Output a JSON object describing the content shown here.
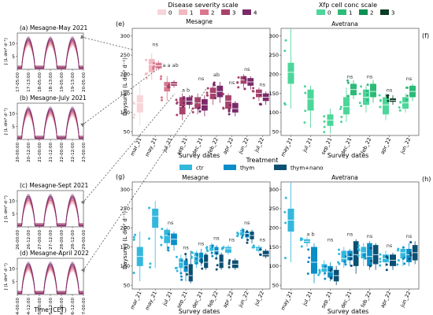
{
  "colors": {
    "severity": [
      "#f7d5d8",
      "#f2b8c0",
      "#d9788e",
      "#a8426c",
      "#7a2a6a"
    ],
    "xf": [
      "#4dd69a",
      "#2dba78",
      "#0f8f52",
      "#0b3d25"
    ],
    "treat": [
      "#33b8dd",
      "#0b8ec8",
      "#0b4f73"
    ]
  },
  "legends": {
    "severity": {
      "title": "Disease severity scale",
      "labels": [
        "0",
        "1",
        "2",
        "3",
        "4"
      ]
    },
    "xf": {
      "title": "Xfp cell conc scale",
      "labels": [
        "0",
        "1",
        "2",
        "3"
      ]
    },
    "treatment": {
      "title": "Treatment",
      "labels": [
        "ctr",
        "thym",
        "thym+nano"
      ]
    }
  },
  "chart_data": [
    {
      "panel": "a",
      "type": "line",
      "title": "(a) Mesagne-May 2021",
      "ylabel": "J (L dm² d⁻¹)",
      "yticks": [
        "5",
        "10"
      ],
      "ticks": [
        "17-05:00",
        "17-13:00",
        "18-05:00",
        "18-13:00",
        "19-05:00",
        "19-13:00",
        "20-05:00"
      ],
      "peak_days": 3
    },
    {
      "panel": "b",
      "type": "line",
      "title": "(b) Mesagne-July 2021",
      "ylabel": "J (L dm² d⁻¹)",
      "yticks": [
        "5",
        "10"
      ],
      "ticks": [
        "20-00:00",
        "20-12:00",
        "21-00:00",
        "21-12:00",
        "22-00:00",
        "22-12:00",
        "23-00:00"
      ],
      "peak_days": 3
    },
    {
      "panel": "c",
      "type": "line",
      "title": "(c) Mesagne-Sept 2021",
      "ylabel": "J (L dm² d⁻¹)",
      "yticks": [
        "5",
        "10"
      ],
      "ticks": [
        "26-00:00",
        "26-12:00",
        "27-00:00",
        "27-12:00",
        "28-00:00",
        "28-12:00",
        "29-00:00"
      ],
      "peak_days": 3
    },
    {
      "panel": "d",
      "type": "line",
      "title": "(d) Mesagne-April 2022",
      "ylabel": "J (L dm² d⁻¹)",
      "yticks": [
        "5",
        "10"
      ],
      "ticks": [
        "04-00:00",
        "04-12:00",
        "05-00:00",
        "05-12:00",
        "06-00:00",
        "06-12:00",
        "07-00:00"
      ],
      "xlabel": "Time (CET)",
      "peak_days": 3
    },
    {
      "panel": "e",
      "type": "box",
      "title": "Mesagne",
      "xlabel": "Survey dates",
      "ylabel": "Daysum J (L dm² d⁻¹)",
      "ylim": [
        40,
        320
      ],
      "yticks": [
        50,
        100,
        150,
        200,
        250,
        300
      ],
      "categories": [
        "mar_21",
        "may_21",
        "jul_21",
        "sep_21",
        "dec_21",
        "feb_22",
        "apr_22",
        "jun_22",
        "jul_22"
      ],
      "boxes": [
        {
          "cat": 0,
          "scale": 0,
          "q1": 100,
          "med": 125,
          "q3": 145,
          "min": 65,
          "max": 175
        },
        {
          "cat": 1,
          "scale": 1,
          "q1": 205,
          "med": 225,
          "q3": 240,
          "min": 185,
          "max": 255
        },
        {
          "cat": 1,
          "scale": 2,
          "q1": 215,
          "med": 222,
          "q3": 230,
          "min": 210,
          "max": 235
        },
        {
          "cat": 2,
          "scale": 2,
          "q1": 155,
          "med": 168,
          "q3": 180,
          "min": 130,
          "max": 195
        },
        {
          "cat": 2,
          "scale": 3,
          "q1": 170,
          "med": 175,
          "q3": 180,
          "min": 165,
          "max": 185
        },
        {
          "cat": 3,
          "scale": 3,
          "q1": 95,
          "med": 115,
          "q3": 140,
          "min": 80,
          "max": 150
        },
        {
          "cat": 3,
          "scale": 4,
          "q1": 120,
          "med": 130,
          "q3": 140,
          "min": 110,
          "max": 145
        },
        {
          "cat": 4,
          "scale": 3,
          "q1": 110,
          "med": 125,
          "q3": 140,
          "min": 95,
          "max": 150
        },
        {
          "cat": 4,
          "scale": 4,
          "q1": 105,
          "med": 120,
          "q3": 135,
          "min": 90,
          "max": 145
        },
        {
          "cat": 5,
          "scale": 3,
          "q1": 135,
          "med": 150,
          "q3": 165,
          "min": 120,
          "max": 175
        },
        {
          "cat": 5,
          "scale": 4,
          "q1": 140,
          "med": 155,
          "q3": 170,
          "min": 125,
          "max": 180
        },
        {
          "cat": 6,
          "scale": 3,
          "q1": 110,
          "med": 130,
          "q3": 145,
          "min": 100,
          "max": 150
        },
        {
          "cat": 6,
          "scale": 4,
          "q1": 100,
          "med": 110,
          "q3": 125,
          "min": 90,
          "max": 130
        },
        {
          "cat": 7,
          "scale": 3,
          "q1": 175,
          "med": 185,
          "q3": 195,
          "min": 165,
          "max": 200
        },
        {
          "cat": 7,
          "scale": 4,
          "q1": 170,
          "med": 180,
          "q3": 190,
          "min": 160,
          "max": 195
        },
        {
          "cat": 8,
          "scale": 3,
          "q1": 140,
          "med": 150,
          "q3": 160,
          "min": 130,
          "max": 165
        },
        {
          "cat": 8,
          "scale": 4,
          "q1": 130,
          "med": 140,
          "q3": 150,
          "min": 120,
          "max": 155
        }
      ],
      "annotations": [
        {
          "cat": 1,
          "y": 270,
          "text": "ns"
        },
        {
          "cat": 2,
          "y": 215,
          "text": "a a ab"
        },
        {
          "cat": 3,
          "y": 150,
          "text": "a b"
        },
        {
          "cat": 4,
          "y": 180,
          "text": "ns"
        },
        {
          "cat": 5,
          "y": 190,
          "text": "ab"
        },
        {
          "cat": 6,
          "y": 170,
          "text": "ns"
        },
        {
          "cat": 7,
          "y": 205,
          "text": "ns"
        },
        {
          "cat": 8,
          "y": 165,
          "text": "ns"
        }
      ]
    },
    {
      "panel": "f",
      "type": "box",
      "title": "Avetrana",
      "xlabel": "Survey dates",
      "ylim": [
        40,
        320
      ],
      "yticks": [
        50,
        100,
        150,
        200,
        250,
        300
      ],
      "categories": [
        "may_21",
        "jul_21",
        "sep_21",
        "dec_21",
        "feb_22",
        "apr_22",
        "jun_22"
      ],
      "boxes": [
        {
          "cat": 0,
          "scale": 0,
          "q1": 175,
          "med": 205,
          "q3": 230,
          "min": 110,
          "max": 320
        },
        {
          "cat": 1,
          "scale": 0,
          "q1": 105,
          "med": 135,
          "q3": 160,
          "min": 60,
          "max": 170
        },
        {
          "cat": 2,
          "scale": 0,
          "q1": 65,
          "med": 80,
          "q3": 95,
          "min": 45,
          "max": 110
        },
        {
          "cat": 3,
          "scale": 0,
          "q1": 95,
          "med": 115,
          "q3": 140,
          "min": 75,
          "max": 165
        },
        {
          "cat": 3,
          "scale": 1,
          "q1": 145,
          "med": 160,
          "q3": 175,
          "min": 135,
          "max": 185
        },
        {
          "cat": 4,
          "scale": 0,
          "q1": 120,
          "med": 140,
          "q3": 160,
          "min": 100,
          "max": 170
        },
        {
          "cat": 4,
          "scale": 1,
          "q1": 140,
          "med": 155,
          "q3": 175,
          "min": 125,
          "max": 185
        },
        {
          "cat": 5,
          "scale": 0,
          "q1": 95,
          "med": 120,
          "q3": 140,
          "min": 80,
          "max": 150
        },
        {
          "cat": 5,
          "scale": 3,
          "q1": 128,
          "med": 132,
          "q3": 137,
          "min": 120,
          "max": 145
        },
        {
          "cat": 6,
          "scale": 0,
          "q1": 110,
          "med": 125,
          "q3": 140,
          "min": 100,
          "max": 150
        },
        {
          "cat": 6,
          "scale": 1,
          "q1": 140,
          "med": 155,
          "q3": 170,
          "min": 130,
          "max": 175
        }
      ],
      "annotations": [
        {
          "cat": 3,
          "y": 185,
          "text": "ns"
        },
        {
          "cat": 4,
          "y": 185,
          "text": "ns"
        },
        {
          "cat": 5,
          "y": 150,
          "text": "ns"
        },
        {
          "cat": 6,
          "y": 180,
          "text": "ns"
        }
      ]
    },
    {
      "panel": "g",
      "type": "box",
      "title": "Mesagne",
      "xlabel": "Survey dates",
      "ylabel": "Daysum J (L dm² d⁻¹)",
      "ylim": [
        40,
        320
      ],
      "yticks": [
        50,
        100,
        150,
        200,
        250,
        300
      ],
      "categories": [
        "mar_21",
        "may_21",
        "jul_21",
        "sep_21",
        "dec_21",
        "feb_22",
        "apr_22",
        "jun_22",
        "jul_22"
      ],
      "boxes": [
        {
          "cat": 0,
          "trt": 0,
          "q1": 100,
          "med": 125,
          "q3": 150,
          "min": 60,
          "max": 190
        },
        {
          "cat": 1,
          "trt": 0,
          "q1": 200,
          "med": 230,
          "q3": 250,
          "min": 95,
          "max": 270
        },
        {
          "cat": 2,
          "trt": 0,
          "q1": 160,
          "med": 180,
          "q3": 195,
          "min": 140,
          "max": 200
        },
        {
          "cat": 2,
          "trt": 1,
          "q1": 155,
          "med": 170,
          "q3": 185,
          "min": 140,
          "max": 190
        },
        {
          "cat": 3,
          "trt": 0,
          "q1": 95,
          "med": 110,
          "q3": 120,
          "min": 80,
          "max": 130
        },
        {
          "cat": 3,
          "trt": 1,
          "q1": 85,
          "med": 100,
          "q3": 115,
          "min": 60,
          "max": 130
        },
        {
          "cat": 3,
          "trt": 2,
          "q1": 60,
          "med": 75,
          "q3": 105,
          "min": 55,
          "max": 140
        },
        {
          "cat": 4,
          "trt": 0,
          "q1": 105,
          "med": 125,
          "q3": 135,
          "min": 95,
          "max": 140
        },
        {
          "cat": 4,
          "trt": 1,
          "q1": 110,
          "med": 120,
          "q3": 135,
          "min": 100,
          "max": 145
        },
        {
          "cat": 4,
          "trt": 2,
          "q1": 95,
          "med": 110,
          "q3": 130,
          "min": 90,
          "max": 135
        },
        {
          "cat": 5,
          "trt": 0,
          "q1": 140,
          "med": 150,
          "q3": 155,
          "min": 130,
          "max": 160
        },
        {
          "cat": 5,
          "trt": 1,
          "q1": 130,
          "med": 140,
          "q3": 150,
          "min": 120,
          "max": 155
        },
        {
          "cat": 5,
          "trt": 2,
          "q1": 95,
          "med": 110,
          "q3": 130,
          "min": 90,
          "max": 135
        },
        {
          "cat": 6,
          "trt": 0,
          "q1": 135,
          "med": 145,
          "q3": 150,
          "min": 130,
          "max": 155
        },
        {
          "cat": 6,
          "trt": 2,
          "q1": 95,
          "med": 105,
          "q3": 115,
          "min": 90,
          "max": 120
        },
        {
          "cat": 7,
          "trt": 0,
          "q1": 180,
          "med": 190,
          "q3": 195,
          "min": 170,
          "max": 200
        },
        {
          "cat": 7,
          "trt": 1,
          "q1": 175,
          "med": 185,
          "q3": 190,
          "min": 165,
          "max": 195
        },
        {
          "cat": 7,
          "trt": 2,
          "q1": 170,
          "med": 180,
          "q3": 190,
          "min": 160,
          "max": 195
        },
        {
          "cat": 8,
          "trt": 0,
          "q1": 140,
          "med": 145,
          "q3": 150,
          "min": 135,
          "max": 155
        },
        {
          "cat": 8,
          "trt": 2,
          "q1": 125,
          "med": 130,
          "q3": 140,
          "min": 120,
          "max": 145
        }
      ],
      "annotations": [
        {
          "cat": 2,
          "y": 205,
          "text": "ns"
        },
        {
          "cat": 3,
          "y": 140,
          "text": "ns"
        },
        {
          "cat": 4,
          "y": 150,
          "text": "ns"
        },
        {
          "cat": 5,
          "y": 165,
          "text": "ns"
        },
        {
          "cat": 6,
          "y": 160,
          "text": "ns"
        },
        {
          "cat": 7,
          "y": 205,
          "text": "ns"
        },
        {
          "cat": 8,
          "y": 160,
          "text": "ns"
        }
      ]
    },
    {
      "panel": "h",
      "type": "box",
      "title": "Avetrana",
      "xlabel": "Survey dates",
      "ylim": [
        40,
        320
      ],
      "yticks": [
        50,
        100,
        150,
        200,
        250,
        300
      ],
      "categories": [
        "may_21",
        "jul_21",
        "sep_21",
        "dec_21",
        "feb_22",
        "apr_22",
        "jun_22"
      ],
      "boxes": [
        {
          "cat": 0,
          "trt": 0,
          "q1": 190,
          "med": 220,
          "q3": 250,
          "min": 110,
          "max": 320
        },
        {
          "cat": 1,
          "trt": 0,
          "q1": 160,
          "med": 165,
          "q3": 170,
          "min": 150,
          "max": 175
        },
        {
          "cat": 1,
          "trt": 1,
          "q1": 80,
          "med": 110,
          "q3": 150,
          "min": 55,
          "max": 160
        },
        {
          "cat": 2,
          "trt": 0,
          "q1": 85,
          "med": 95,
          "q3": 105,
          "min": 75,
          "max": 115
        },
        {
          "cat": 2,
          "trt": 1,
          "q1": 70,
          "med": 85,
          "q3": 100,
          "min": 60,
          "max": 110
        },
        {
          "cat": 2,
          "trt": 2,
          "q1": 60,
          "med": 75,
          "q3": 90,
          "min": 50,
          "max": 100
        },
        {
          "cat": 3,
          "trt": 0,
          "q1": 110,
          "med": 120,
          "q3": 140,
          "min": 95,
          "max": 150
        },
        {
          "cat": 3,
          "trt": 1,
          "q1": 115,
          "med": 125,
          "q3": 140,
          "min": 100,
          "max": 145
        },
        {
          "cat": 3,
          "trt": 2,
          "q1": 100,
          "med": 130,
          "q3": 165,
          "min": 80,
          "max": 170
        },
        {
          "cat": 4,
          "trt": 0,
          "q1": 120,
          "med": 135,
          "q3": 150,
          "min": 100,
          "max": 160
        },
        {
          "cat": 4,
          "trt": 1,
          "q1": 100,
          "med": 125,
          "q3": 160,
          "min": 90,
          "max": 165
        },
        {
          "cat": 4,
          "trt": 2,
          "q1": 105,
          "med": 130,
          "q3": 155,
          "min": 90,
          "max": 160
        },
        {
          "cat": 5,
          "trt": 0,
          "q1": 110,
          "med": 120,
          "q3": 130,
          "min": 100,
          "max": 140
        },
        {
          "cat": 5,
          "trt": 2,
          "q1": 100,
          "med": 115,
          "q3": 130,
          "min": 90,
          "max": 135
        },
        {
          "cat": 6,
          "trt": 0,
          "q1": 120,
          "med": 135,
          "q3": 145,
          "min": 100,
          "max": 150
        },
        {
          "cat": 6,
          "trt": 1,
          "q1": 110,
          "med": 130,
          "q3": 145,
          "min": 100,
          "max": 160
        },
        {
          "cat": 6,
          "trt": 2,
          "q1": 115,
          "med": 135,
          "q3": 155,
          "min": 105,
          "max": 165
        }
      ],
      "annotations": [
        {
          "cat": 1,
          "y": 175,
          "text": "a b"
        },
        {
          "cat": 2,
          "y": 160,
          "text": "ns"
        },
        {
          "cat": 3,
          "y": 175,
          "text": "ns"
        },
        {
          "cat": 4,
          "y": 170,
          "text": "ns"
        },
        {
          "cat": 5,
          "y": 145,
          "text": "ns"
        },
        {
          "cat": 6,
          "y": 170,
          "text": "ns"
        }
      ]
    }
  ],
  "panel_labels": [
    "(e)",
    "(f)",
    "(g)",
    "(h)"
  ]
}
